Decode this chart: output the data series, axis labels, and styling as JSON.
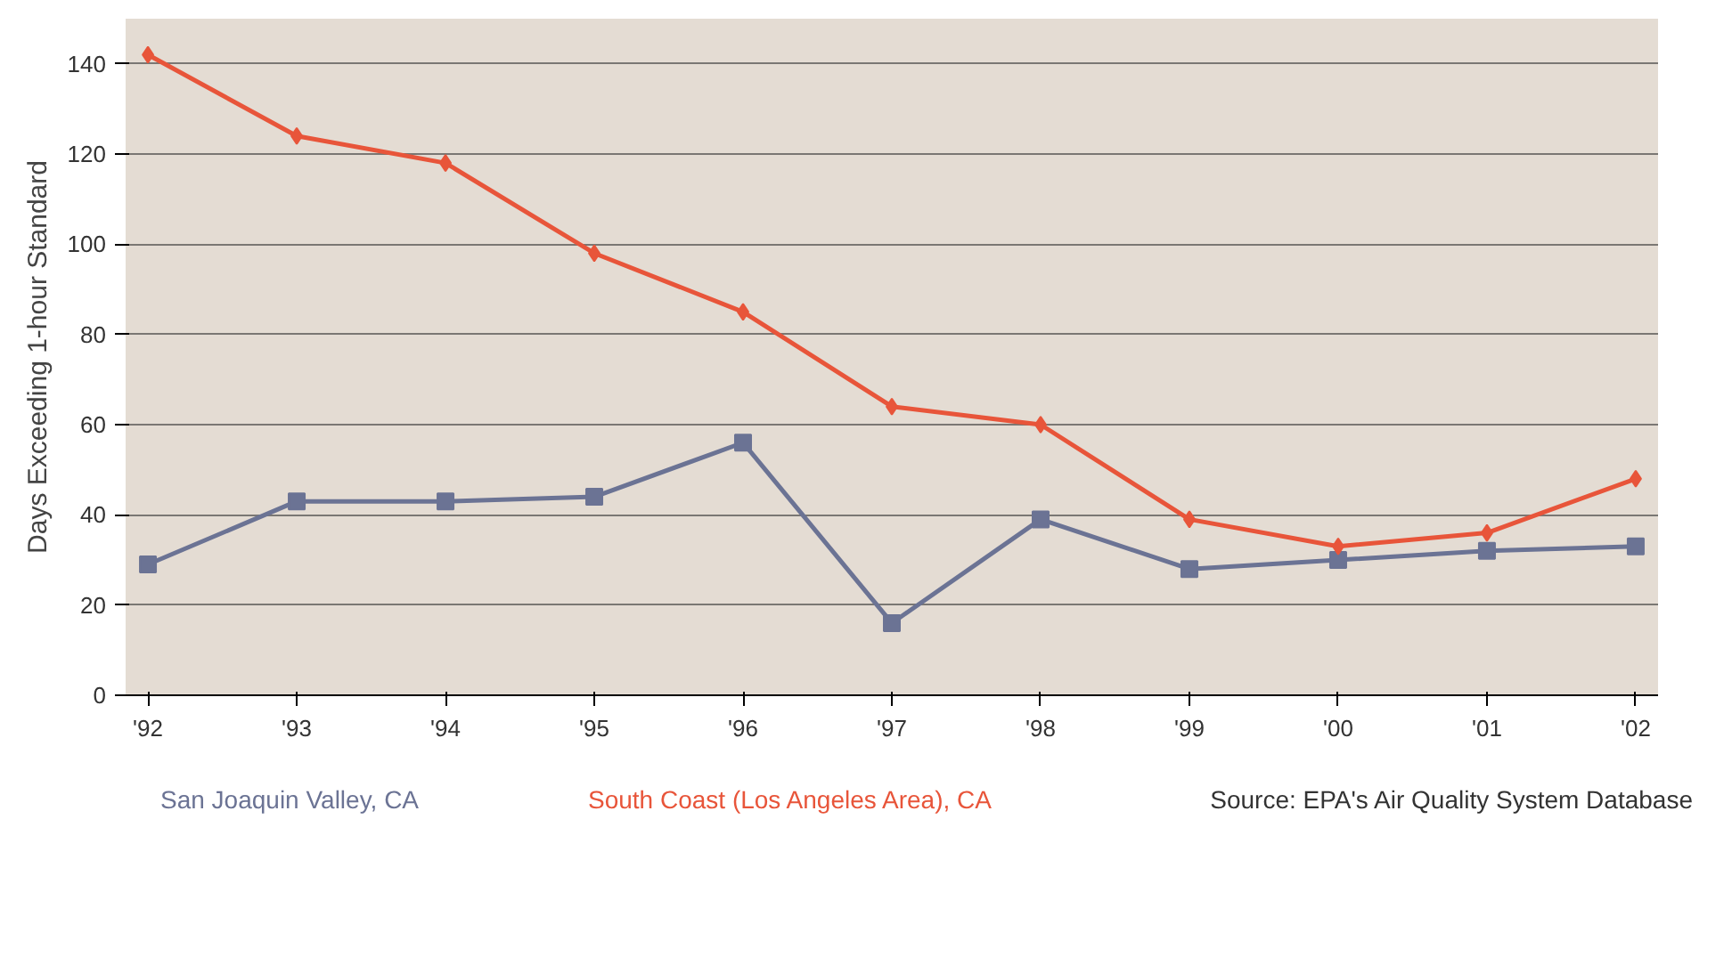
{
  "chart_data": {
    "type": "line",
    "ylabel": "Days Exceeding 1-hour Standard",
    "categories": [
      "'92",
      "'93",
      "'94",
      "'95",
      "'96",
      "'97",
      "'98",
      "'99",
      "'00",
      "'01",
      "'02"
    ],
    "series": [
      {
        "name": "San Joaquin Valley, CA",
        "color": "#6b7394",
        "marker": "square",
        "values": [
          29,
          43,
          43,
          44,
          56,
          16,
          39,
          28,
          30,
          32,
          33
        ]
      },
      {
        "name": "South Coast (Los Angeles Area), CA",
        "color": "#e8553a",
        "marker": "diamond",
        "values": [
          142,
          124,
          118,
          98,
          85,
          64,
          60,
          39,
          33,
          36,
          48
        ]
      }
    ],
    "ylim": [
      0,
      150
    ],
    "yticks": [
      0,
      20,
      40,
      60,
      80,
      100,
      120,
      140
    ],
    "grid": "y",
    "annotations": [
      "Source:  EPA's Air Quality System Database"
    ]
  }
}
